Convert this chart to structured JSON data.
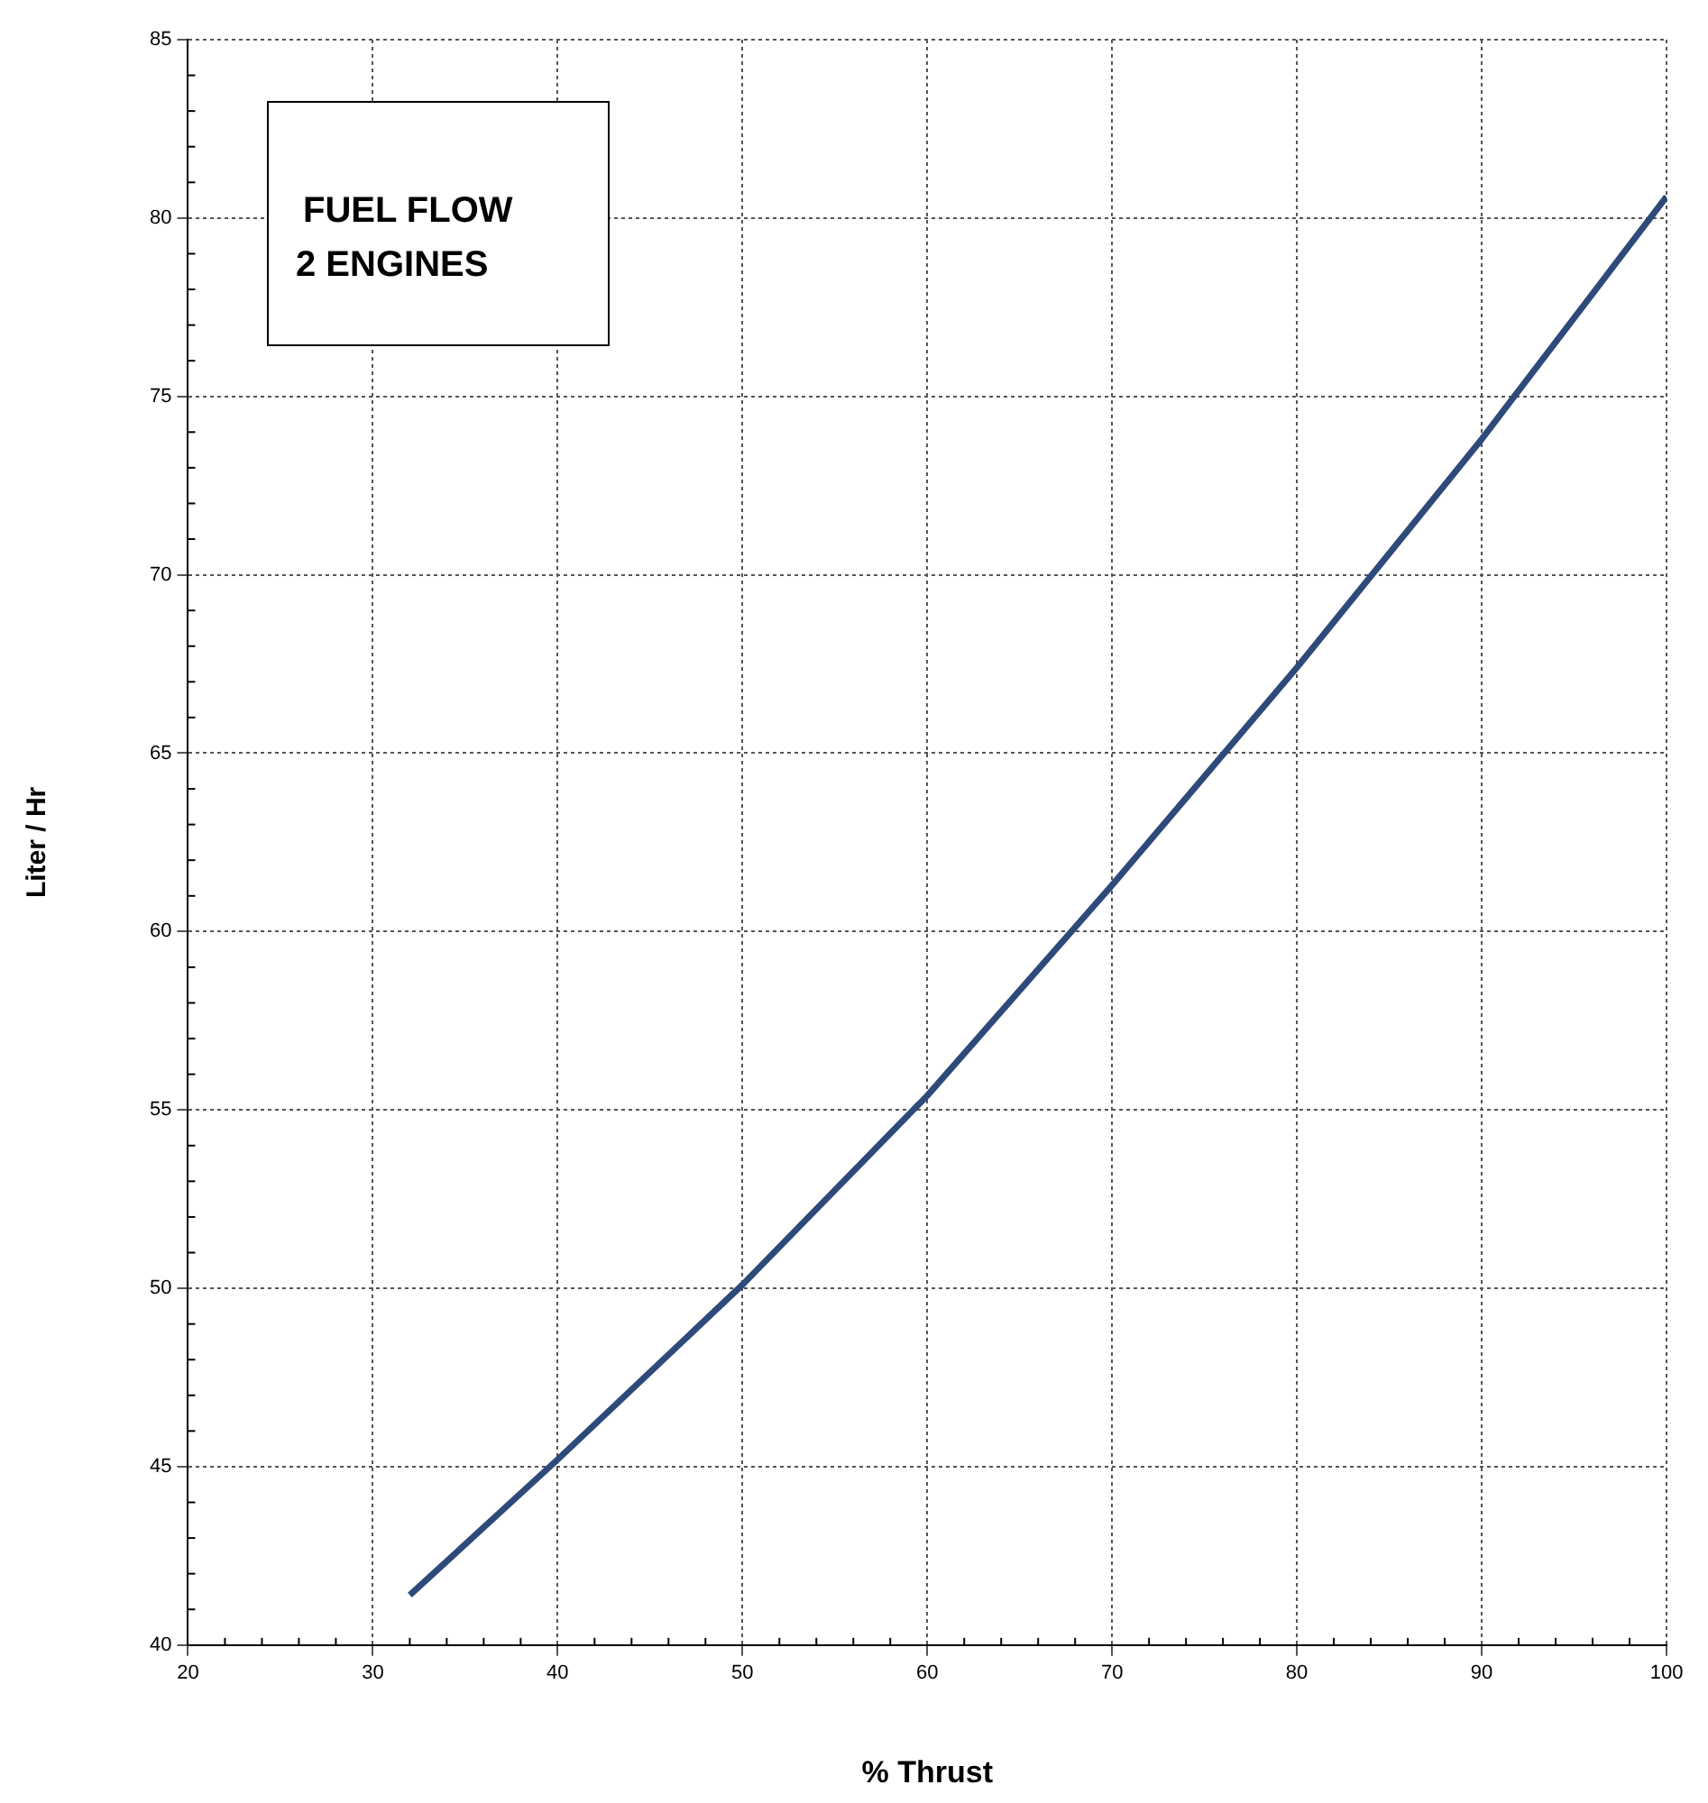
{
  "chart_data": {
    "type": "line",
    "xlabel": "% Thrust",
    "ylabel": "Liter / Hr",
    "x": [
      32,
      40,
      50,
      60,
      70,
      80,
      90,
      100
    ],
    "series": [
      {
        "color": "#2e4a7a",
        "values": [
          41.4,
          45.2,
          50.1,
          55.4,
          61.3,
          67.4,
          73.8,
          80.6
        ]
      }
    ],
    "xlim": [
      20,
      100
    ],
    "xticks": [
      20,
      30,
      40,
      50,
      60,
      70,
      80,
      90,
      100
    ],
    "ylim": [
      40,
      85
    ],
    "yticks": [
      40,
      45,
      50,
      55,
      60,
      65,
      70,
      75,
      80,
      85
    ],
    "grid": true,
    "legend": false,
    "marker": "none",
    "line_style": "solid",
    "annotations": [
      "FUEL FLOW",
      "2 ENGINES"
    ]
  }
}
